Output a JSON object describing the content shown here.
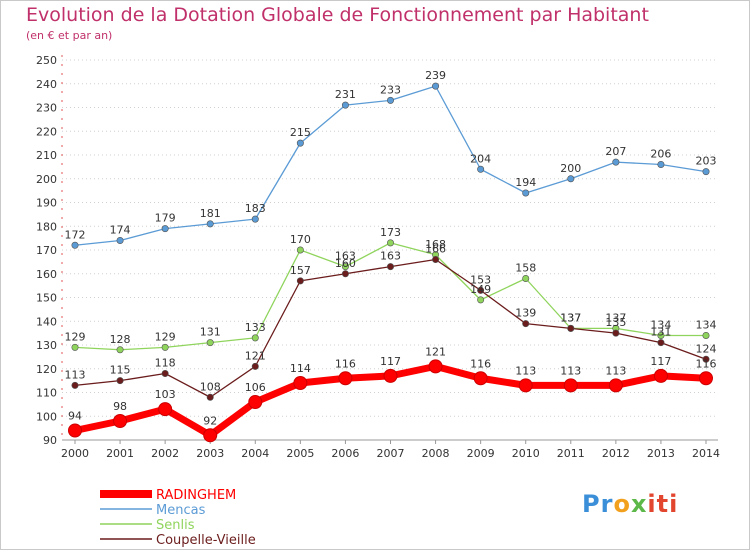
{
  "title": "Evolution de la Dotation Globale de Fonctionnement par Habitant",
  "subtitle": "(en € et par an)",
  "logo": {
    "text": "Proxiti",
    "parts": [
      "Pr",
      "o",
      "x",
      "iti"
    ]
  },
  "chart_data": {
    "type": "line",
    "title": "Evolution de la Dotation Globale de Fonctionnement par Habitant",
    "subtitle": "(en € et par an)",
    "x": [
      "2000",
      "2001",
      "2002",
      "2003",
      "2004",
      "2005",
      "2006",
      "2007",
      "2008",
      "2009",
      "2010",
      "2011",
      "2012",
      "2013",
      "2014"
    ],
    "yticks": [
      "90",
      "100",
      "110",
      "120",
      "130",
      "140",
      "150",
      "160",
      "170",
      "180",
      "190",
      "200",
      "210",
      "220",
      "230",
      "240",
      "250"
    ],
    "ylim": [
      90,
      250
    ],
    "grid": "horizontal dotted",
    "legend_position": "bottom-left",
    "series": [
      {
        "name": "RADINGHEM",
        "color": "#ff0000",
        "values": [
          94,
          98,
          103,
          92,
          106,
          114,
          116,
          117,
          121,
          116,
          113,
          113,
          113,
          117,
          116
        ]
      },
      {
        "name": "Mencas",
        "color": "#5b9bd5",
        "values": [
          172,
          174,
          179,
          181,
          183,
          215,
          231,
          233,
          239,
          204,
          194,
          200,
          207,
          206,
          203
        ]
      },
      {
        "name": "Senlis",
        "color": "#8fd45c",
        "values": [
          129,
          128,
          129,
          131,
          133,
          170,
          163,
          173,
          168,
          149,
          158,
          137,
          137,
          134,
          134
        ]
      },
      {
        "name": "Coupelle-Vieille",
        "color": "#6b1c1c",
        "values": [
          113,
          115,
          118,
          108,
          121,
          157,
          160,
          163,
          166,
          153,
          139,
          137,
          135,
          131,
          124
        ]
      }
    ]
  }
}
